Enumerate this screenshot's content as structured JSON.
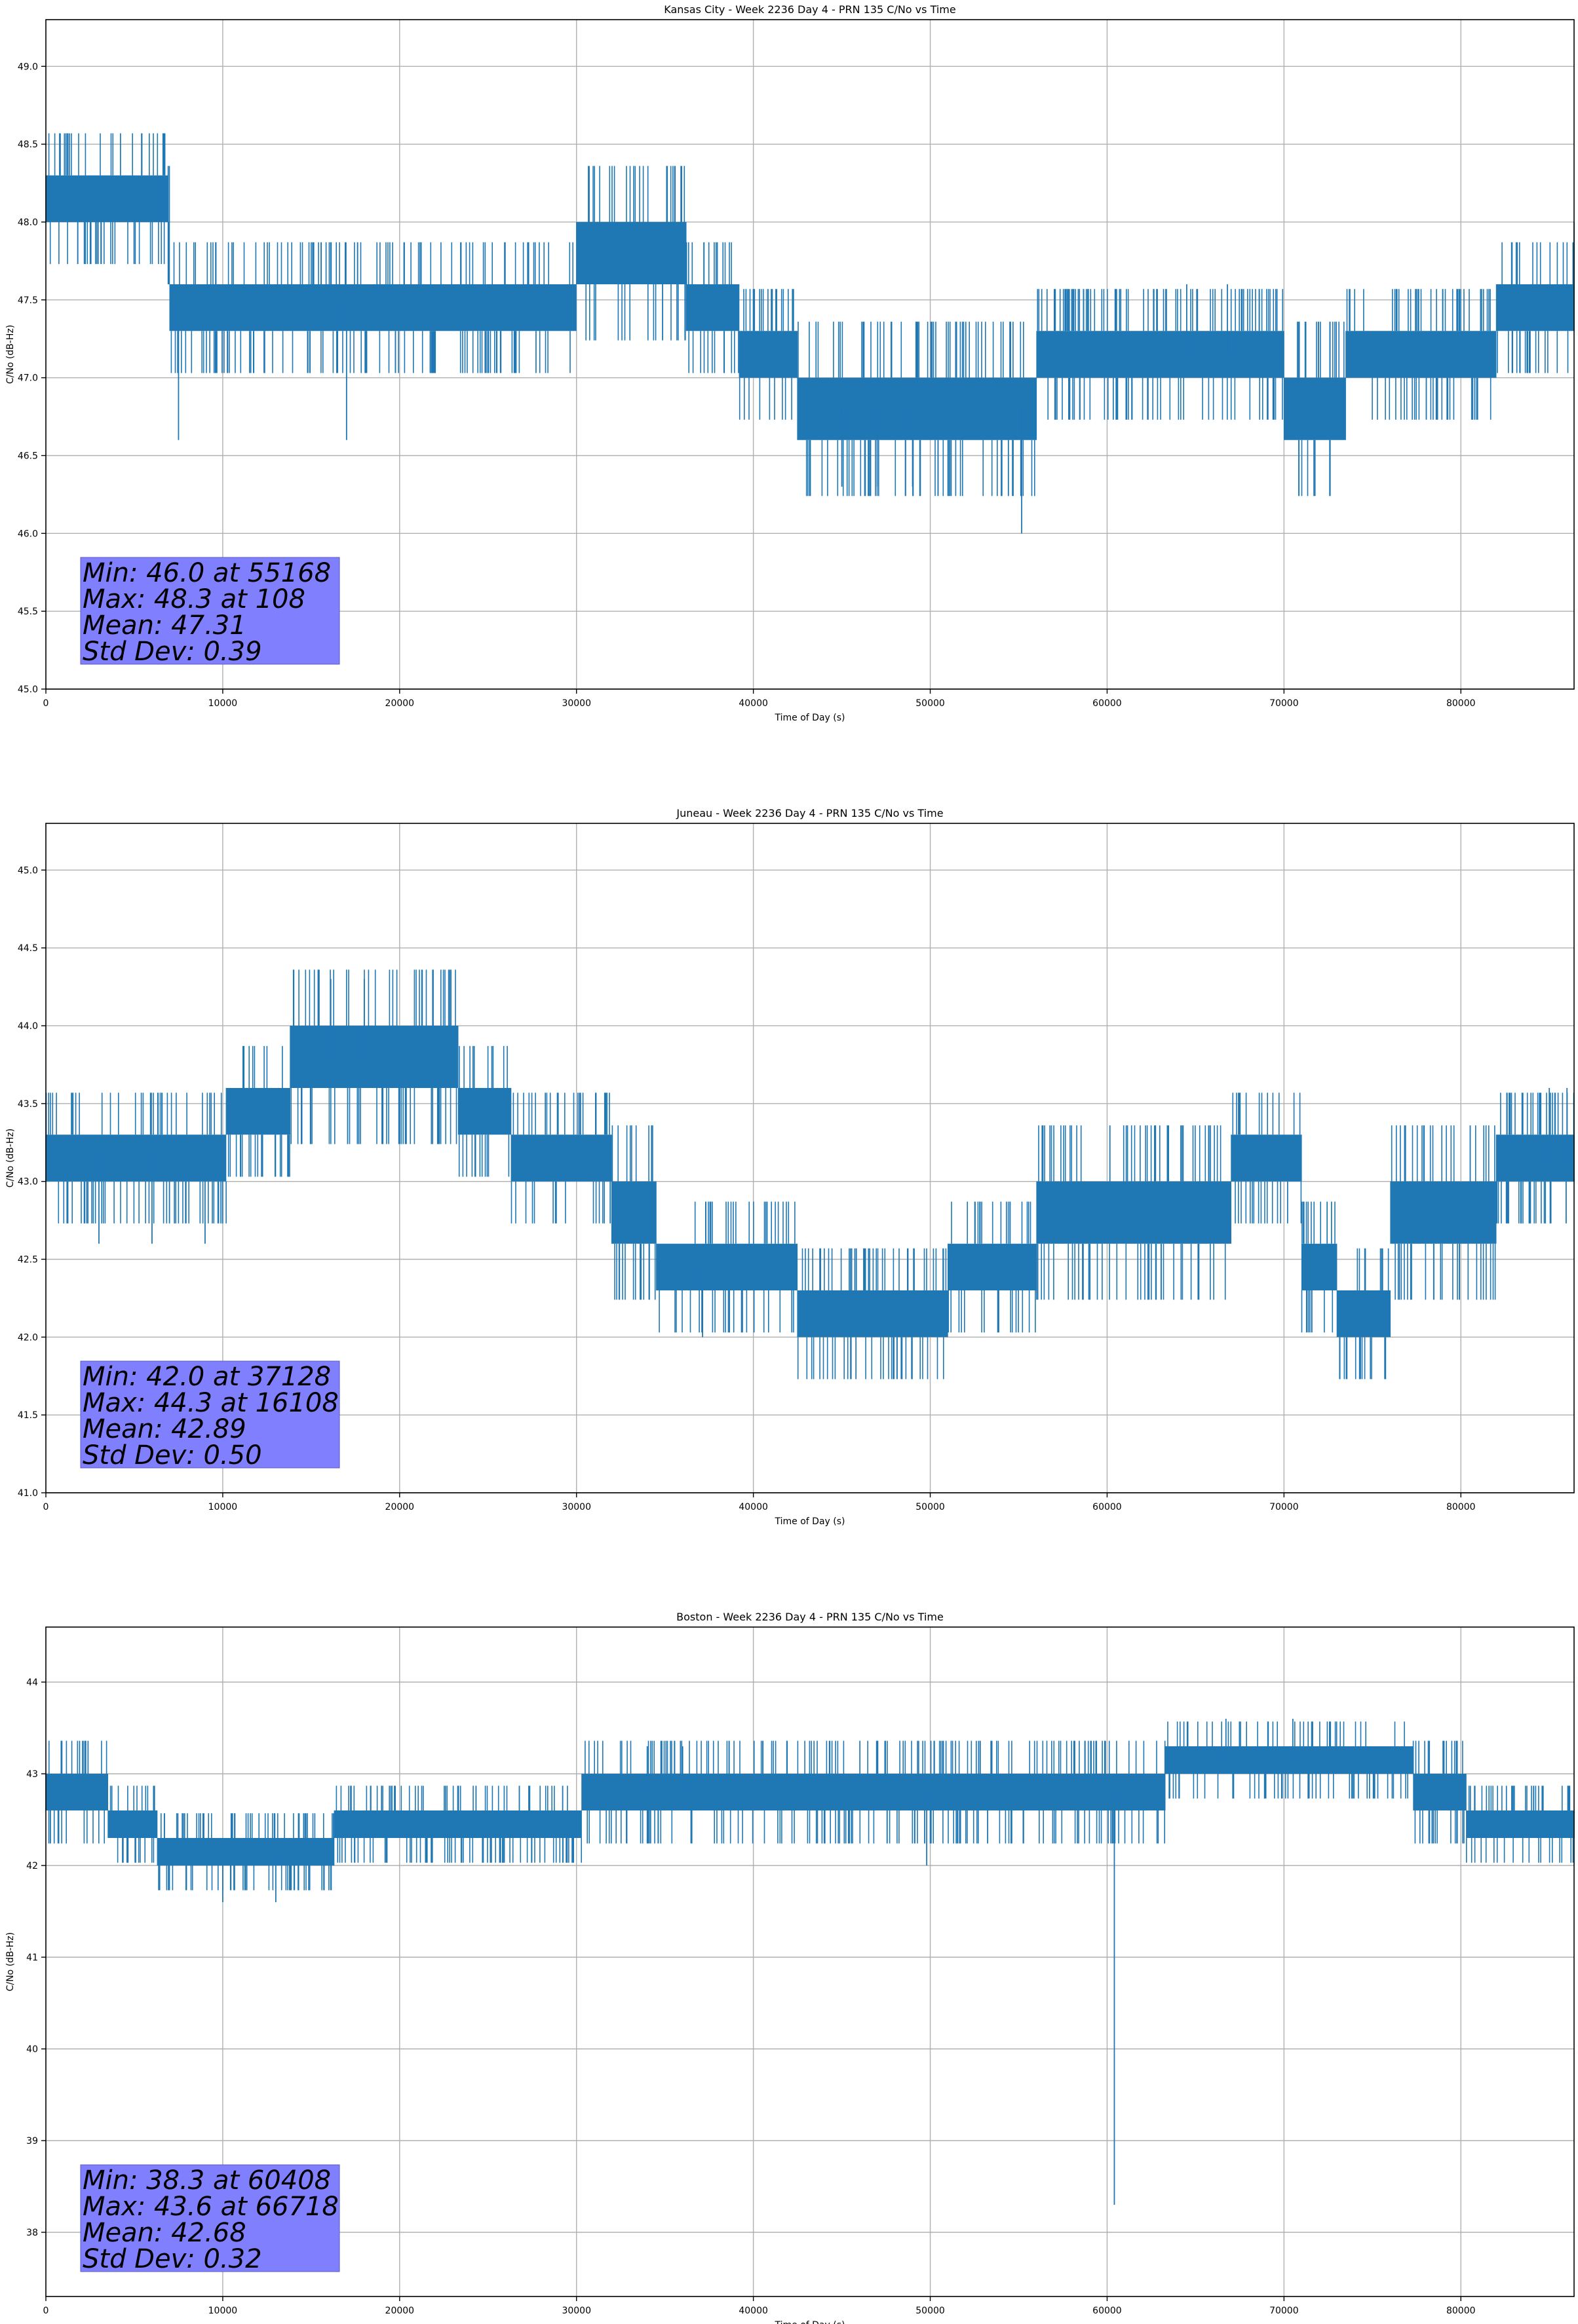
{
  "chart_data": [
    {
      "type": "line",
      "title": "Kansas City - Week 2236 Day 4 - PRN 135 C/No vs Time",
      "xlabel": "Time of Day (s)",
      "ylabel": "C/No (dB-Hz)",
      "xlim": [
        0,
        86400
      ],
      "ylim": [
        45.0,
        49.3
      ],
      "xticks": [
        0,
        10000,
        20000,
        30000,
        40000,
        50000,
        60000,
        70000,
        80000
      ],
      "xtick_labels": [
        "0",
        "10000",
        "20000",
        "30000",
        "40000",
        "50000",
        "60000",
        "70000",
        "80000"
      ],
      "yticks": [
        45.0,
        45.5,
        46.0,
        46.5,
        47.0,
        47.5,
        48.0,
        48.5,
        49.0
      ],
      "ytick_labels": [
        "45.0",
        "45.5",
        "46.0",
        "46.5",
        "47.0",
        "47.5",
        "48.0",
        "48.5",
        "49.0"
      ],
      "grid": true,
      "color": "#1f77b4",
      "series": [
        {
          "x": [
            0,
            6900,
            7000,
            16000,
            17000,
            29000,
            30000,
            36000,
            36200,
            39000,
            39200,
            42000,
            42500,
            48000,
            49000,
            55000,
            56000,
            64000,
            65000,
            70000,
            71000,
            73500,
            74000,
            82000,
            83000,
            86400
          ],
          "band_low": [
            48.0,
            47.6,
            47.3,
            47.3,
            47.3,
            47.3,
            47.6,
            47.6,
            47.3,
            47.3,
            47.0,
            47.0,
            46.6,
            46.6,
            46.6,
            46.6,
            47.0,
            47.0,
            47.0,
            46.6,
            46.6,
            47.0,
            47.0,
            47.3,
            47.3,
            47.3
          ],
          "band_high": [
            48.3,
            48.0,
            47.6,
            47.6,
            47.6,
            47.6,
            48.0,
            48.0,
            47.6,
            47.6,
            47.3,
            47.3,
            47.0,
            47.0,
            47.0,
            47.0,
            47.3,
            47.3,
            47.3,
            47.0,
            47.0,
            47.3,
            47.3,
            47.6,
            47.6,
            48.0
          ]
        }
      ],
      "spikes": [
        {
          "x": 7500,
          "y": 46.6
        },
        {
          "x": 17000,
          "y": 46.6
        },
        {
          "x": 55168,
          "y": 46.0
        },
        {
          "x": 45000,
          "y": 46.3
        },
        {
          "x": 47000,
          "y": 46.3
        },
        {
          "x": 49000,
          "y": 46.3
        },
        {
          "x": 108,
          "y": 48.3
        },
        {
          "x": 64500,
          "y": 47.6
        },
        {
          "x": 66800,
          "y": 47.6
        }
      ],
      "stats": [
        "Min: 46.0 at 55168",
        "Max: 48.3 at 108",
        "Mean: 47.31",
        "Std Dev: 0.39"
      ],
      "stats_box_color": "#8080ff"
    },
    {
      "type": "line",
      "title": "Juneau - Week 2236 Day 4 - PRN 135 C/No vs Time",
      "xlabel": "Time of Day (s)",
      "ylabel": "C/No (dB-Hz)",
      "xlim": [
        0,
        86400
      ],
      "ylim": [
        41.0,
        45.3
      ],
      "xticks": [
        0,
        10000,
        20000,
        30000,
        40000,
        50000,
        60000,
        70000,
        80000
      ],
      "xtick_labels": [
        "0",
        "10000",
        "20000",
        "30000",
        "40000",
        "50000",
        "60000",
        "70000",
        "80000"
      ],
      "yticks": [
        41.0,
        41.5,
        42.0,
        42.5,
        43.0,
        43.5,
        44.0,
        44.5,
        45.0
      ],
      "ytick_labels": [
        "41.0",
        "41.5",
        "42.0",
        "42.5",
        "43.0",
        "43.5",
        "44.0",
        "44.5",
        "45.0"
      ],
      "grid": true,
      "color": "#1f77b4",
      "series": [
        {
          "x": [
            0,
            10000,
            10200,
            13500,
            13800,
            23000,
            23300,
            26000,
            26300,
            31000,
            32000,
            34000,
            34500,
            42000,
            42500,
            50000,
            51000,
            55000,
            56000,
            66000,
            67000,
            70000,
            71000,
            72500,
            73000,
            75000,
            76000,
            81000,
            82000,
            86400
          ],
          "band_low": [
            43.0,
            43.0,
            43.3,
            43.3,
            43.6,
            43.6,
            43.3,
            43.3,
            43.0,
            43.0,
            42.6,
            42.6,
            42.3,
            42.3,
            42.0,
            42.0,
            42.3,
            42.3,
            42.6,
            42.6,
            43.0,
            43.0,
            42.3,
            42.3,
            42.0,
            42.0,
            42.6,
            42.6,
            43.0,
            43.0
          ],
          "band_high": [
            43.3,
            43.3,
            43.6,
            43.6,
            44.0,
            44.0,
            43.6,
            43.6,
            43.3,
            43.3,
            43.0,
            43.0,
            42.6,
            42.6,
            42.3,
            42.3,
            42.6,
            42.6,
            43.0,
            43.0,
            43.3,
            43.3,
            42.6,
            42.6,
            42.3,
            42.3,
            43.0,
            43.0,
            43.3,
            43.3
          ]
        }
      ],
      "spikes": [
        {
          "x": 16108,
          "y": 44.3
        },
        {
          "x": 18000,
          "y": 44.3
        },
        {
          "x": 37128,
          "y": 42.0
        },
        {
          "x": 3000,
          "y": 42.6
        },
        {
          "x": 6000,
          "y": 42.6
        },
        {
          "x": 9000,
          "y": 42.6
        },
        {
          "x": 85000,
          "y": 43.6
        },
        {
          "x": 86000,
          "y": 43.6
        }
      ],
      "stats": [
        "Min: 42.0 at 37128",
        "Max: 44.3 at 16108",
        "Mean: 42.89",
        "Std Dev: 0.50"
      ],
      "stats_box_color": "#8080ff"
    },
    {
      "type": "line",
      "title": "Boston - Week 2236 Day 4 - PRN 135 C/No vs Time",
      "xlabel": "Time of Day (s)",
      "ylabel": "C/No (dB-Hz)",
      "xlim": [
        0,
        86400
      ],
      "ylim": [
        37.3,
        44.6
      ],
      "xticks": [
        0,
        10000,
        20000,
        30000,
        40000,
        50000,
        60000,
        70000,
        80000
      ],
      "xtick_labels": [
        "0",
        "10000",
        "20000",
        "30000",
        "40000",
        "50000",
        "60000",
        "70000",
        "80000"
      ],
      "yticks": [
        38,
        39,
        40,
        41,
        42,
        43,
        44
      ],
      "ytick_labels": [
        "38",
        "39",
        "40",
        "41",
        "42",
        "43",
        "44"
      ],
      "grid": true,
      "color": "#1f77b4",
      "series": [
        {
          "x": [
            0,
            3000,
            3500,
            6000,
            6300,
            16000,
            16300,
            30000,
            30300,
            55000,
            55300,
            63000,
            63300,
            77000,
            77300,
            80000,
            80300,
            86400
          ],
          "band_low": [
            42.6,
            42.6,
            42.3,
            42.3,
            42.0,
            42.0,
            42.3,
            42.3,
            42.6,
            42.6,
            42.6,
            42.6,
            43.0,
            43.0,
            42.6,
            42.6,
            42.3,
            42.3
          ],
          "band_high": [
            43.0,
            43.0,
            42.6,
            42.6,
            42.3,
            42.3,
            42.6,
            42.6,
            43.0,
            43.0,
            43.0,
            43.0,
            43.3,
            43.3,
            43.0,
            43.0,
            42.6,
            42.6
          ]
        }
      ],
      "spikes": [
        {
          "x": 60408,
          "y": 38.3
        },
        {
          "x": 49800,
          "y": 42.0
        },
        {
          "x": 66718,
          "y": 43.6
        },
        {
          "x": 70500,
          "y": 43.6
        },
        {
          "x": 10000,
          "y": 41.6
        },
        {
          "x": 13000,
          "y": 41.6
        },
        {
          "x": 34000,
          "y": 43.3
        },
        {
          "x": 36000,
          "y": 43.3
        }
      ],
      "stats": [
        "Min: 38.3 at 60408",
        "Max: 43.6 at 66718",
        "Mean: 42.68",
        "Std Dev: 0.32"
      ],
      "stats_box_color": "#8080ff"
    }
  ]
}
